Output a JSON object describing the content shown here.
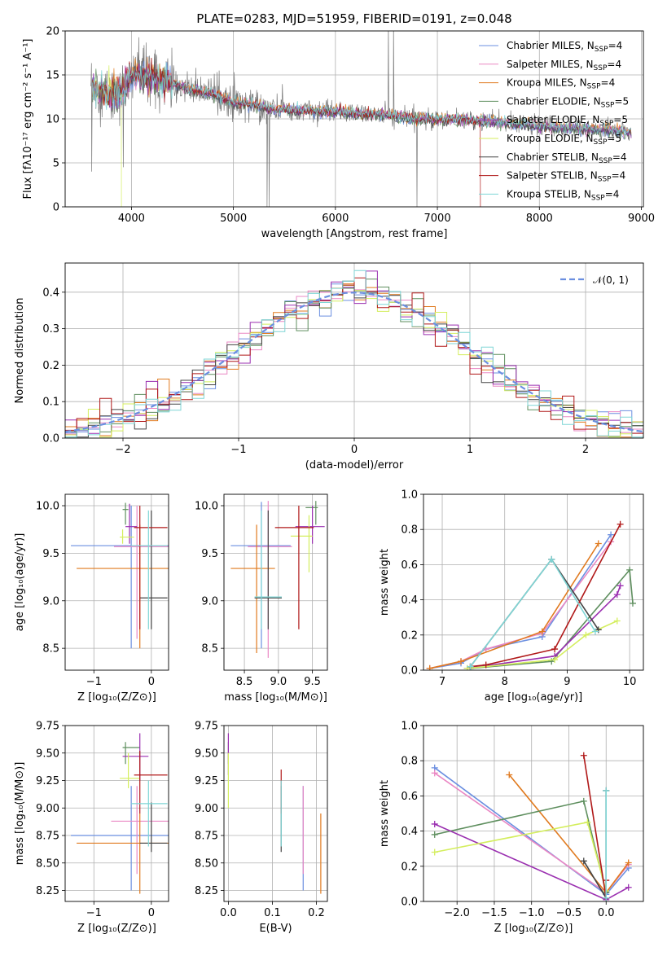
{
  "colors": {
    "chabrier_miles": "#6b8fe0",
    "salpeter_miles": "#ea88c4",
    "kroupa_miles": "#e07a1f",
    "chabrier_elodie": "#5f8f5f",
    "salpeter_elodie": "#9a2fb0",
    "kroupa_elodie": "#d4ee5e",
    "chabrier_stelib": "#444444",
    "salpeter_stelib": "#b01818",
    "kroupa_stelib": "#7fd6d6",
    "normal_curve": "#6b8fe0"
  },
  "chart_data": [
    {
      "id": "spectrum",
      "type": "line",
      "title": "PLATE=0283, MJD=51959, FIBERID=0191, z=0.048",
      "xlabel": "wavelength [Angstrom, rest frame]",
      "ylabel": "Flux [fλ10⁻¹⁷ erg cm⁻² s⁻¹ A⁻¹]",
      "xlim": [
        3350,
        9020
      ],
      "ylim": [
        0,
        20
      ],
      "xticks": [
        4000,
        5000,
        6000,
        7000,
        8000,
        9000
      ],
      "yticks": [
        0,
        5,
        10,
        15,
        20
      ],
      "legend_position": "upper right",
      "legend": [
        {
          "label": "Chabrier MILES, N",
          "sub": "SSP",
          "suffix": "=4",
          "color_key": "chabrier_miles"
        },
        {
          "label": "Salpeter MILES, N",
          "sub": "SSP",
          "suffix": "=4",
          "color_key": "salpeter_miles"
        },
        {
          "label": "Kroupa MILES, N",
          "sub": "SSP",
          "suffix": "=4",
          "color_key": "kroupa_miles"
        },
        {
          "label": "Chabrier ELODIE, N",
          "sub": "SSP",
          "suffix": "=5",
          "color_key": "chabrier_elodie"
        },
        {
          "label": "Salpeter ELODIE, N",
          "sub": "SSP",
          "suffix": "=5",
          "color_key": "salpeter_elodie"
        },
        {
          "label": "Kroupa ELODIE, N",
          "sub": "SSP",
          "suffix": "=5",
          "color_key": "kroupa_elodie"
        },
        {
          "label": "Chabrier STELIB, N",
          "sub": "SSP",
          "suffix": "=4",
          "color_key": "chabrier_stelib"
        },
        {
          "label": "Salpeter STELIB, N",
          "sub": "SSP",
          "suffix": "=4",
          "color_key": "salpeter_stelib"
        },
        {
          "label": "Kroupa STELIB, N",
          "sub": "SSP",
          "suffix": "=4",
          "color_key": "kroupa_stelib"
        }
      ],
      "continuum": [
        [
          3600,
          14.2
        ],
        [
          3700,
          13.2
        ],
        [
          3800,
          12.9
        ],
        [
          3900,
          12.8
        ],
        [
          4000,
          15.2
        ],
        [
          4200,
          14.8
        ],
        [
          4400,
          14.0
        ],
        [
          4600,
          13.3
        ],
        [
          4800,
          12.8
        ],
        [
          5000,
          11.9
        ],
        [
          5200,
          11.6
        ],
        [
          5400,
          11.1
        ],
        [
          5600,
          11.0
        ],
        [
          5800,
          10.9
        ],
        [
          6000,
          10.8
        ],
        [
          6200,
          10.6
        ],
        [
          6400,
          10.5
        ],
        [
          6600,
          10.3
        ],
        [
          6800,
          10.0
        ],
        [
          7000,
          10.0
        ],
        [
          7200,
          9.9
        ],
        [
          7400,
          9.8
        ],
        [
          7600,
          9.6
        ],
        [
          7800,
          9.4
        ],
        [
          8000,
          9.2
        ],
        [
          8200,
          9.0
        ],
        [
          8400,
          8.9
        ],
        [
          8600,
          8.8
        ],
        [
          8800,
          8.6
        ],
        [
          8900,
          8.5
        ]
      ],
      "data_spikes": [
        [
          3610,
          4.0
        ],
        [
          3920,
          4.5
        ],
        [
          4860,
          15.5
        ],
        [
          5330,
          0.0
        ],
        [
          5350,
          0.0
        ],
        [
          6520,
          21.0
        ],
        [
          6570,
          21.0
        ],
        [
          6800,
          0.0
        ]
      ],
      "model_ends": [
        {
          "series": "kroupa_elodie",
          "end": 3900
        },
        {
          "series": "salpeter_stelib",
          "end": 7420
        },
        {
          "series": "kroupa_stelib",
          "end": 8900
        }
      ]
    },
    {
      "id": "residuals",
      "type": "step",
      "xlabel": "(data-model)/error",
      "ylabel": "Normed distribution",
      "xlim": [
        -2.5,
        2.5
      ],
      "ylim": [
        0,
        0.48
      ],
      "xticks": [
        -2,
        -1,
        0,
        1,
        2
      ],
      "yticks": [
        0.0,
        0.1,
        0.2,
        0.3,
        0.4
      ],
      "legend": [
        {
          "label": "𝒩(0, 1)",
          "color_key": "normal_curve",
          "style": "dashed"
        }
      ],
      "bin_width": 0.1
    },
    {
      "id": "age-vs-Z",
      "type": "errorbar",
      "xlabel": "Z [log₁₀(Z/Z⊙)]",
      "ylabel": "age  [log₁₀(age/yr)]",
      "xlim": [
        -1.5,
        0.3
      ],
      "ylim": [
        8.27,
        10.12
      ],
      "xticks": [
        -1,
        0
      ],
      "yticks": [
        8.5,
        9.0,
        9.5,
        10.0
      ],
      "points": [
        {
          "c": "chabrier_miles",
          "x": -0.35,
          "xe": [
            -1.4,
            0.3
          ],
          "y": 9.58,
          "ye": [
            8.5,
            10.0
          ]
        },
        {
          "c": "salpeter_miles",
          "x": -0.25,
          "xe": [
            -0.65,
            0.3
          ],
          "y": 9.57,
          "ye": [
            8.6,
            10.0
          ]
        },
        {
          "c": "kroupa_miles",
          "x": -0.2,
          "xe": [
            -1.3,
            0.3
          ],
          "y": 9.34,
          "ye": [
            8.5,
            9.8
          ]
        },
        {
          "c": "chabrier_elodie",
          "x": -0.45,
          "xe": [
            -0.5,
            -0.4
          ],
          "y": 9.96,
          "ye": [
            9.8,
            10.03
          ]
        },
        {
          "c": "salpeter_elodie",
          "x": -0.38,
          "xe": [
            -0.45,
            -0.25
          ],
          "y": 9.78,
          "ye": [
            9.6,
            10.02
          ]
        },
        {
          "c": "kroupa_elodie",
          "x": -0.5,
          "xe": [
            -0.55,
            -0.3
          ],
          "y": 9.67,
          "ye": [
            9.6,
            9.75
          ]
        },
        {
          "c": "chabrier_stelib",
          "x": 0.0,
          "xe": [
            -0.2,
            0.28
          ],
          "y": 9.03,
          "ye": [
            8.7,
            9.95
          ]
        },
        {
          "c": "salpeter_stelib",
          "x": -0.2,
          "xe": [
            -0.3,
            0.28
          ],
          "y": 9.77,
          "ye": [
            8.7,
            10.0
          ]
        },
        {
          "c": "kroupa_stelib",
          "x": -0.05,
          "xe": [
            -0.35,
            0.28
          ],
          "y": 9.58,
          "ye": [
            8.7,
            9.95
          ]
        }
      ]
    },
    {
      "id": "age-vs-mass",
      "type": "errorbar",
      "xlabel": "mass [log₁₀(M/M⊙)]",
      "ylabel": "",
      "xlim": [
        8.2,
        9.72
      ],
      "ylim": [
        8.27,
        10.12
      ],
      "xticks": [
        8.5,
        9.0,
        9.5
      ],
      "yticks": [
        8.5,
        9.0,
        9.5,
        10.0
      ],
      "points": [
        {
          "c": "chabrier_miles",
          "x": 8.75,
          "xe": [
            8.3,
            9.18
          ],
          "y": 9.58,
          "ye": [
            8.5,
            10.04
          ]
        },
        {
          "c": "salpeter_miles",
          "x": 8.85,
          "xe": [
            8.55,
            9.2
          ],
          "y": 9.57,
          "ye": [
            8.4,
            10.05
          ]
        },
        {
          "c": "kroupa_miles",
          "x": 8.68,
          "xe": [
            8.3,
            8.95
          ],
          "y": 9.34,
          "ye": [
            8.45,
            9.8
          ]
        },
        {
          "c": "chabrier_elodie",
          "x": 9.55,
          "xe": [
            9.4,
            9.58
          ],
          "y": 9.98,
          "ye": [
            9.8,
            10.05
          ]
        },
        {
          "c": "salpeter_elodie",
          "x": 9.5,
          "xe": [
            9.25,
            9.68
          ],
          "y": 9.78,
          "ye": [
            9.6,
            10.0
          ]
        },
        {
          "c": "kroupa_elodie",
          "x": 9.45,
          "xe": [
            9.18,
            9.5
          ],
          "y": 9.68,
          "ye": [
            9.3,
            9.9
          ]
        },
        {
          "c": "chabrier_stelib",
          "x": 8.85,
          "xe": [
            8.65,
            9.05
          ],
          "y": 9.03,
          "ye": [
            8.7,
            9.95
          ]
        },
        {
          "c": "salpeter_stelib",
          "x": 9.3,
          "xe": [
            8.95,
            9.52
          ],
          "y": 9.77,
          "ye": [
            8.7,
            10.0
          ]
        },
        {
          "c": "kroupa_stelib",
          "x": 8.75,
          "xe": [
            8.65,
            9.05
          ],
          "y": 9.04,
          "ye": [
            8.7,
            9.95
          ]
        }
      ]
    },
    {
      "id": "weight-vs-age",
      "type": "line",
      "xlabel": "age  [log₁₀(age/yr)]",
      "ylabel": "mass weight",
      "xlim": [
        6.7,
        10.22
      ],
      "ylim": [
        0,
        1.0
      ],
      "xticks": [
        7,
        8,
        9,
        10
      ],
      "yticks": [
        0.0,
        0.2,
        0.4,
        0.6,
        0.8,
        1.0
      ],
      "series": [
        {
          "c": "chabrier_miles",
          "x": [
            6.8,
            7.3,
            7.7,
            8.6,
            9.7
          ],
          "y": [
            0.01,
            0.04,
            0.12,
            0.19,
            0.77
          ]
        },
        {
          "c": "salpeter_miles",
          "x": [
            6.8,
            7.3,
            7.7,
            8.6,
            9.7
          ],
          "y": [
            0.01,
            0.05,
            0.12,
            0.21,
            0.73
          ]
        },
        {
          "c": "kroupa_miles",
          "x": [
            6.8,
            7.3,
            8.6,
            9.5
          ],
          "y": [
            0.01,
            0.05,
            0.22,
            0.72
          ]
        },
        {
          "c": "chabrier_elodie",
          "x": [
            7.45,
            8.75,
            10.0,
            10.05
          ],
          "y": [
            0.01,
            0.05,
            0.57,
            0.38
          ]
        },
        {
          "c": "salpeter_elodie",
          "x": [
            7.4,
            8.8,
            9.8,
            9.85
          ],
          "y": [
            0.01,
            0.08,
            0.43,
            0.48
          ]
        },
        {
          "c": "kroupa_elodie",
          "x": [
            7.4,
            8.8,
            9.3,
            9.8
          ],
          "y": [
            0.01,
            0.06,
            0.2,
            0.28
          ]
        },
        {
          "c": "chabrier_stelib",
          "x": [
            7.45,
            8.75,
            9.5
          ],
          "y": [
            0.02,
            0.63,
            0.23
          ]
        },
        {
          "c": "salpeter_stelib",
          "x": [
            7.45,
            7.7,
            8.8,
            9.85
          ],
          "y": [
            0.02,
            0.03,
            0.12,
            0.83
          ]
        },
        {
          "c": "kroupa_stelib",
          "x": [
            7.45,
            8.75,
            9.45
          ],
          "y": [
            0.02,
            0.63,
            0.22
          ]
        }
      ]
    },
    {
      "id": "mass-vs-Z",
      "type": "errorbar",
      "xlabel": "Z [log₁₀(Z/Z⊙)]",
      "ylabel": "mass [log₁₀(M/M⊙)]",
      "xlim": [
        -1.5,
        0.3
      ],
      "ylim": [
        8.15,
        9.75
      ],
      "xticks": [
        -1,
        0
      ],
      "yticks": [
        8.25,
        8.5,
        8.75,
        9.0,
        9.25,
        9.5,
        9.75
      ],
      "points": [
        {
          "c": "chabrier_miles",
          "x": -0.35,
          "xe": [
            -1.4,
            0.3
          ],
          "y": 8.75,
          "ye": [
            8.25,
            9.2
          ]
        },
        {
          "c": "salpeter_miles",
          "x": -0.25,
          "xe": [
            -0.7,
            0.3
          ],
          "y": 8.88,
          "ye": [
            8.4,
            9.2
          ]
        },
        {
          "c": "kroupa_miles",
          "x": -0.2,
          "xe": [
            -1.3,
            0.3
          ],
          "y": 8.68,
          "ye": [
            8.22,
            8.95
          ]
        },
        {
          "c": "chabrier_elodie",
          "x": -0.45,
          "xe": [
            -0.5,
            -0.2
          ],
          "y": 9.55,
          "ye": [
            9.4,
            9.6
          ]
        },
        {
          "c": "salpeter_elodie",
          "x": -0.2,
          "xe": [
            -0.5,
            -0.05
          ],
          "y": 9.47,
          "ye": [
            9.25,
            9.68
          ]
        },
        {
          "c": "kroupa_elodie",
          "x": -0.4,
          "xe": [
            -0.55,
            -0.2
          ],
          "y": 9.27,
          "ye": [
            9.18,
            9.5
          ]
        },
        {
          "c": "chabrier_stelib",
          "x": 0.0,
          "xe": [
            -0.2,
            0.28
          ],
          "y": 8.68,
          "ye": [
            8.6,
            9.05
          ]
        },
        {
          "c": "salpeter_stelib",
          "x": -0.2,
          "xe": [
            -0.3,
            0.28
          ],
          "y": 9.3,
          "ye": [
            8.95,
            9.52
          ]
        },
        {
          "c": "kroupa_stelib",
          "x": -0.05,
          "xe": [
            -0.35,
            0.28
          ],
          "y": 9.04,
          "ye": [
            8.65,
            9.25
          ]
        }
      ]
    },
    {
      "id": "mass-vs-ebv",
      "type": "errorbar",
      "xlabel": "E(B-V)",
      "ylabel": "",
      "xlim": [
        -0.01,
        0.225
      ],
      "ylim": [
        8.15,
        9.75
      ],
      "xticks": [
        0.0,
        0.1,
        0.2
      ],
      "yticks": [
        8.25,
        8.5,
        8.75,
        9.0,
        9.25,
        9.5,
        9.75
      ],
      "points": [
        {
          "c": "chabrier_miles",
          "x": 0.17,
          "y": 8.75,
          "ye": [
            8.25,
            9.2
          ]
        },
        {
          "c": "salpeter_miles",
          "x": 0.17,
          "y": 8.88,
          "ye": [
            8.4,
            9.2
          ]
        },
        {
          "c": "kroupa_miles",
          "x": 0.21,
          "y": 8.68,
          "ye": [
            8.22,
            8.95
          ]
        },
        {
          "c": "chabrier_elodie",
          "x": 0.0,
          "y": 9.55,
          "ye": [
            9.4,
            9.6
          ]
        },
        {
          "c": "salpeter_elodie",
          "x": 0.0,
          "y": 9.5,
          "ye": [
            9.3,
            9.68
          ]
        },
        {
          "c": "kroupa_elodie",
          "x": 0.0,
          "y": 9.27,
          "ye": [
            9.0,
            9.5
          ]
        },
        {
          "c": "chabrier_stelib",
          "x": 0.12,
          "y": 8.68,
          "ye": [
            8.6,
            9.2
          ]
        },
        {
          "c": "salpeter_stelib",
          "x": 0.12,
          "y": 9.3,
          "ye": [
            8.95,
            9.35
          ]
        },
        {
          "c": "kroupa_stelib",
          "x": 0.12,
          "y": 9.04,
          "ye": [
            8.65,
            9.25
          ]
        }
      ]
    },
    {
      "id": "weight-vs-Z",
      "type": "line",
      "xlabel": "Z [log₁₀(Z/Z⊙)]",
      "ylabel": "mass weight",
      "xlim": [
        -2.45,
        0.5
      ],
      "ylim": [
        0,
        1.0
      ],
      "xticks": [
        -2.0,
        -1.5,
        -1.0,
        -0.5,
        0.0
      ],
      "yticks": [
        0.0,
        0.2,
        0.4,
        0.6,
        0.8,
        1.0
      ],
      "series": [
        {
          "c": "chabrier_miles",
          "x": [
            -2.3,
            0.0,
            0.3
          ],
          "y": [
            0.76,
            0.04,
            0.19
          ]
        },
        {
          "c": "salpeter_miles",
          "x": [
            -2.3,
            0.0,
            0.3
          ],
          "y": [
            0.73,
            0.05,
            0.21
          ]
        },
        {
          "c": "kroupa_miles",
          "x": [
            -1.3,
            0.0,
            0.3
          ],
          "y": [
            0.72,
            0.05,
            0.22
          ]
        },
        {
          "c": "chabrier_elodie",
          "x": [
            -2.3,
            -0.3,
            0.0
          ],
          "y": [
            0.38,
            0.57,
            0.05
          ]
        },
        {
          "c": "salpeter_elodie",
          "x": [
            -2.3,
            0.0,
            0.3
          ],
          "y": [
            0.44,
            0.01,
            0.08
          ]
        },
        {
          "c": "kroupa_elodie",
          "x": [
            -2.3,
            -0.25,
            0.0
          ],
          "y": [
            0.28,
            0.45,
            0.06
          ]
        },
        {
          "c": "chabrier_stelib",
          "x": [
            -0.3,
            0.0,
            0.0
          ],
          "y": [
            0.23,
            0.02,
            0.63
          ]
        },
        {
          "c": "salpeter_stelib",
          "x": [
            -0.3,
            0.0,
            0.0
          ],
          "y": [
            0.83,
            0.02,
            0.12
          ]
        },
        {
          "c": "kroupa_stelib",
          "x": [
            0.0,
            0.0
          ],
          "y": [
            0.02,
            0.63
          ]
        }
      ]
    }
  ]
}
